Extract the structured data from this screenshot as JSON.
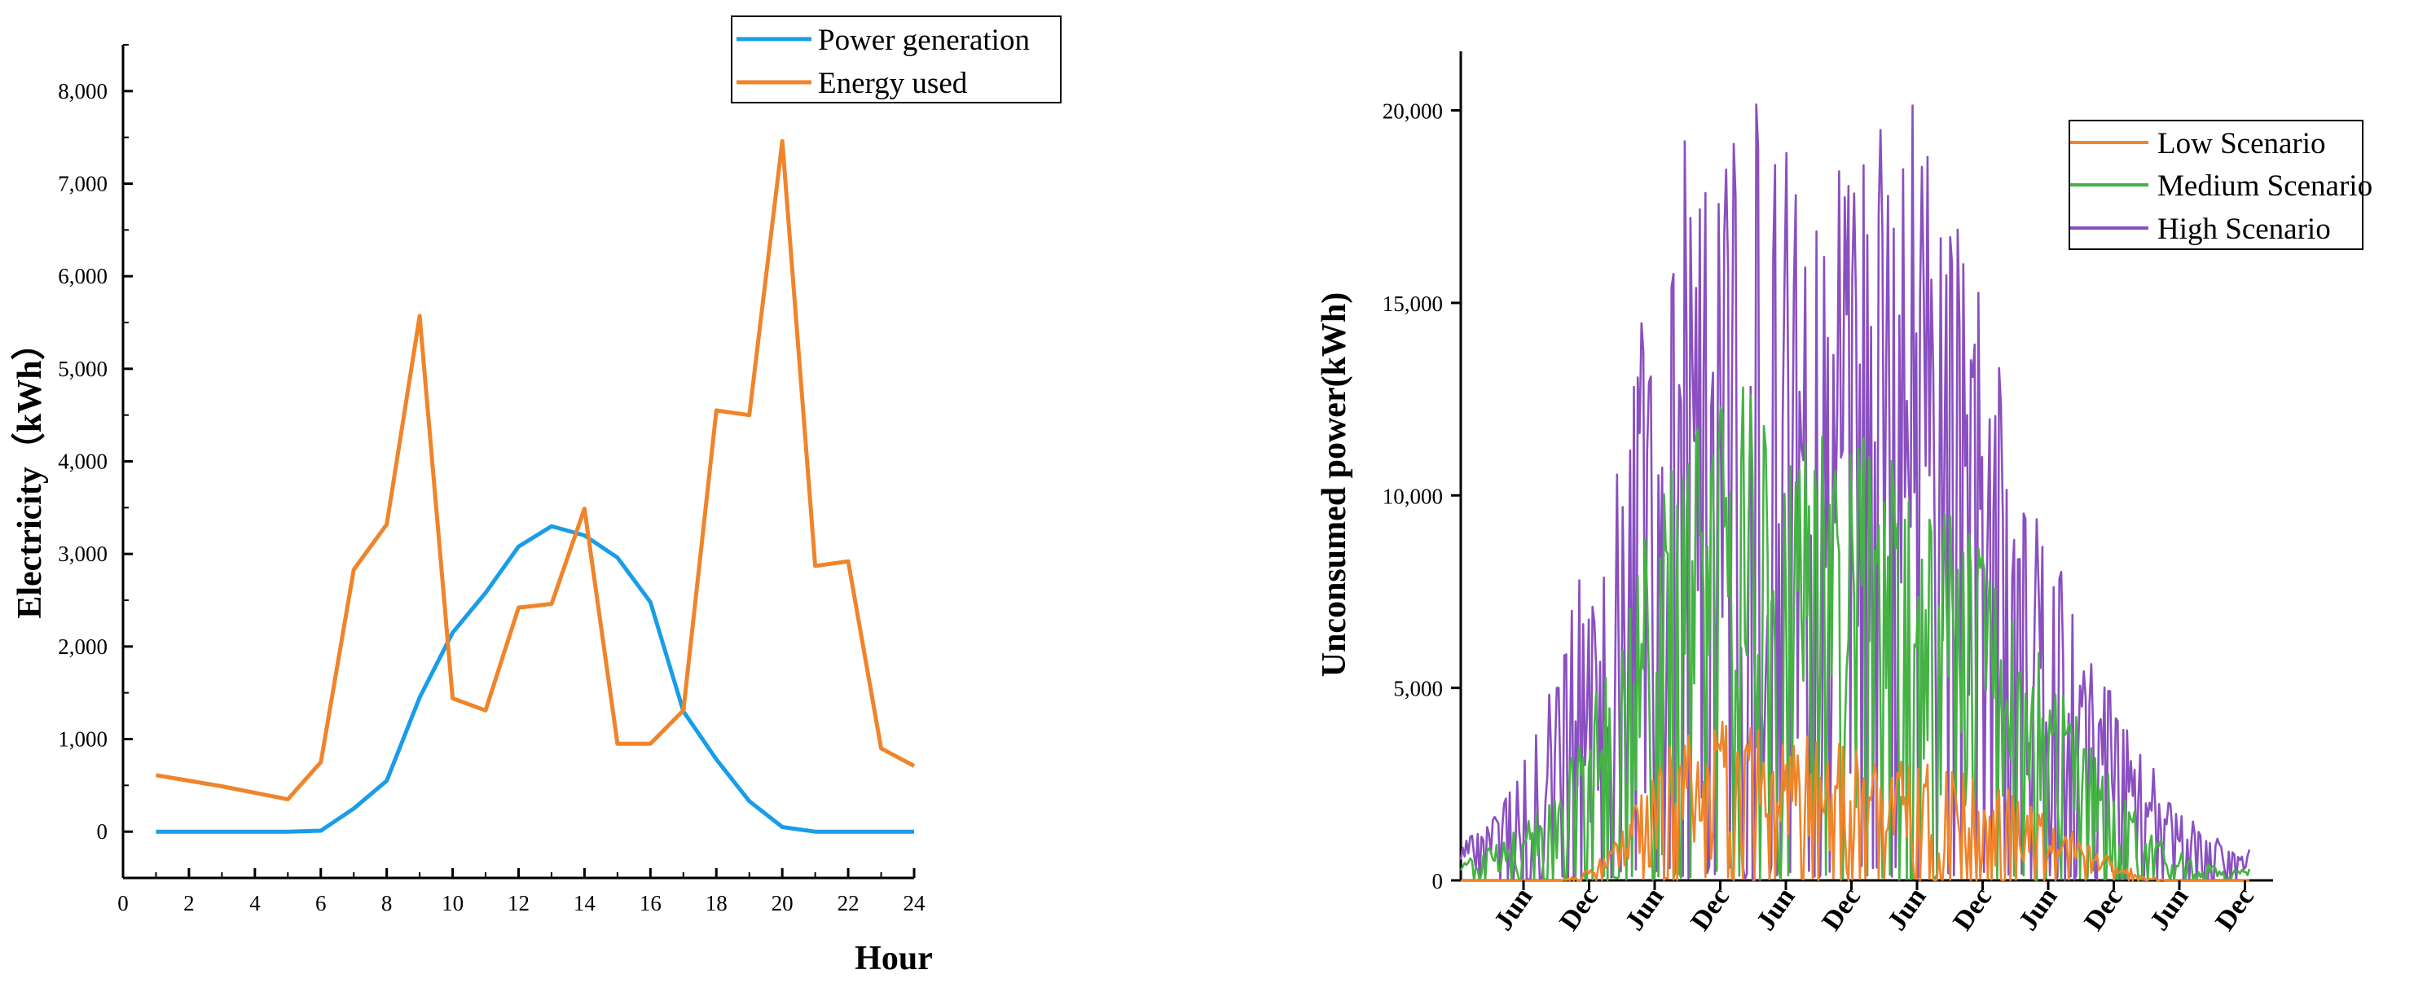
{
  "chart_data": [
    {
      "type": "line",
      "title": "",
      "xlabel": "Hour",
      "ylabel": "Electricity（kWh）",
      "x": [
        1,
        2,
        3,
        4,
        5,
        6,
        7,
        8,
        9,
        10,
        11,
        12,
        13,
        14,
        15,
        16,
        17,
        18,
        19,
        20,
        21,
        22,
        23,
        24
      ],
      "xlim": [
        0,
        24
      ],
      "ylim": [
        -500,
        8500
      ],
      "xticks": [
        0,
        2,
        4,
        6,
        8,
        10,
        12,
        14,
        16,
        18,
        20,
        22,
        24
      ],
      "xtick_labels": [
        "0",
        "2",
        "4",
        "6",
        "8",
        "10",
        "12",
        "14",
        "16",
        "18",
        "20",
        "22",
        "24"
      ],
      "yticks": [
        0,
        1000,
        2000,
        3000,
        4000,
        5000,
        6000,
        7000,
        8000
      ],
      "ytick_labels": [
        "0",
        "1,000",
        "2,000",
        "3,000",
        "4,000",
        "5,000",
        "6,000",
        "7,000",
        "8,000"
      ],
      "grid": false,
      "legend_position": "top-right",
      "series": [
        {
          "name": "Power generation",
          "color": "#1a9de6",
          "values": [
            0,
            0,
            0,
            0,
            0,
            10,
            250,
            550,
            1450,
            2150,
            2580,
            3080,
            3300,
            3200,
            2960,
            2480,
            1300,
            780,
            330,
            50,
            0,
            0,
            0,
            0
          ]
        },
        {
          "name": "Energy used",
          "color": "#f0842a",
          "values": [
            610,
            550,
            490,
            420,
            350,
            750,
            2830,
            3320,
            5570,
            1440,
            1310,
            2420,
            2460,
            3490,
            950,
            950,
            1310,
            4550,
            4500,
            7460,
            2870,
            2920,
            900,
            710
          ]
        }
      ]
    },
    {
      "type": "line",
      "title": "",
      "xlabel": "",
      "ylabel": "Unconsumed power(kWh)",
      "ylim": [
        0,
        22000
      ],
      "yticks": [
        0,
        5000,
        10000,
        15000,
        20000
      ],
      "ytick_labels": [
        "0",
        "5,000",
        "10,000",
        "15,000",
        "20,000"
      ],
      "xtick_labels": [
        "Jun",
        "Dec",
        "Jun",
        "Dec",
        "Jun",
        "Dec",
        "Jun",
        "Dec",
        "Jun",
        "Dec",
        "Jun",
        "Dec"
      ],
      "grid": false,
      "legend_position": "top-right",
      "series": [
        {
          "name": "Low Scenario",
          "color": "#f0842a",
          "envelope": [
            0,
            0,
            0,
            0,
            0,
            0,
            0,
            150,
            400,
            900,
            1600,
            2400,
            3200,
            3900,
            4300,
            4400,
            4300,
            4100,
            4000,
            3900,
            3800,
            3700,
            3600,
            3500,
            3400,
            3300,
            3200,
            3100,
            3000,
            2900,
            2800,
            2700,
            2500,
            2300,
            2000,
            1700,
            1400,
            1100,
            800,
            500,
            300,
            100,
            0,
            0,
            0,
            0,
            0,
            0
          ]
        },
        {
          "name": "Medium Scenario",
          "color": "#44b344",
          "envelope": [
            500,
            700,
            900,
            1200,
            1600,
            2100,
            2800,
            3700,
            4800,
            6100,
            7600,
            9100,
            10500,
            11600,
            12400,
            12800,
            12900,
            12800,
            12700,
            12600,
            12500,
            12300,
            12100,
            11900,
            11700,
            11500,
            11300,
            11000,
            10600,
            10100,
            9500,
            8800,
            8000,
            7200,
            6400,
            5600,
            4800,
            4000,
            3200,
            2500,
            1900,
            1400,
            1000,
            700,
            500,
            400,
            300,
            300
          ]
        },
        {
          "name": "High Scenario",
          "color": "#8a4fc0",
          "envelope": [
            1000,
            1300,
            1800,
            2500,
            3400,
            4600,
            6000,
            7700,
            9600,
            11700,
            13800,
            15800,
            17600,
            19000,
            20000,
            20600,
            20900,
            20700,
            20400,
            20100,
            19900,
            19700,
            19600,
            19500,
            19600,
            19900,
            20200,
            20400,
            19500,
            18200,
            16800,
            15300,
            13800,
            12300,
            10800,
            9400,
            8100,
            6900,
            5800,
            4800,
            3900,
            3100,
            2400,
            1800,
            1400,
            1100,
            900,
            800
          ]
        }
      ]
    }
  ]
}
